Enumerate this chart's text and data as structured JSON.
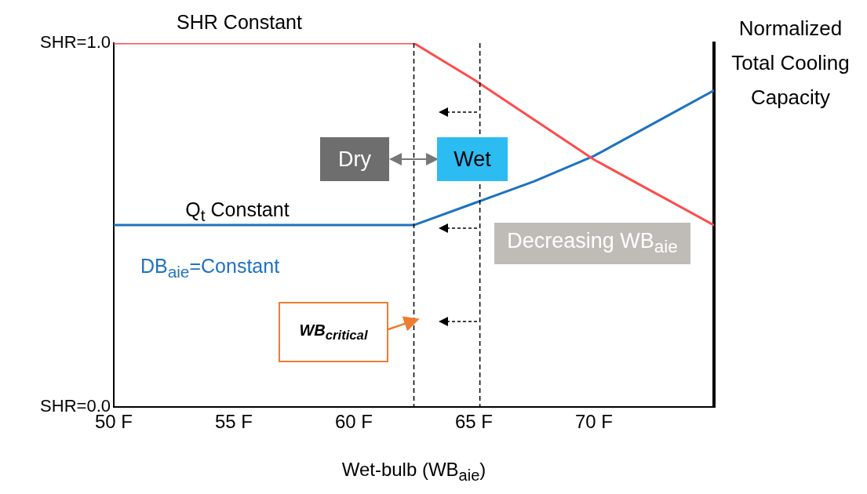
{
  "chart_data": {
    "type": "line",
    "xlabel": "Wet-bulb (WB$_{aie}$)",
    "y2label": "Normalized Total Cooling Capacity",
    "xlim": [
      50,
      75
    ],
    "xticks": [
      {
        "value": 50,
        "label": "50 F"
      },
      {
        "value": 55,
        "label": "55 F"
      },
      {
        "value": 60,
        "label": "60 F"
      },
      {
        "value": 65,
        "label": "65 F"
      },
      {
        "value": 70,
        "label": "70 F"
      }
    ],
    "ylim": [
      0,
      1
    ],
    "yticks": [
      {
        "value": 0,
        "label": "SHR=0.0"
      },
      {
        "value": 1,
        "label": "SHR=1.0"
      }
    ],
    "series": [
      {
        "color": "#ff4b4b",
        "x": [
          50,
          62.5,
          65,
          67.5,
          70,
          72.5,
          75
        ],
        "values": [
          1.0,
          1.0,
          0.9,
          0.79,
          0.68,
          0.59,
          0.5
        ]
      },
      {
        "color": "#1f72c0",
        "x": [
          50,
          62.5,
          65,
          67.5,
          70,
          72.5,
          75
        ],
        "values": [
          0.5,
          0.5,
          0.56,
          0.62,
          0.69,
          0.78,
          0.87
        ]
      }
    ],
    "ref_lines": [
      {
        "axis": "x",
        "value": 62.5,
        "color": "#000000",
        "line_style": "dashed"
      },
      {
        "axis": "x",
        "value": 65.25,
        "color": "#000000",
        "line_style": "dashed"
      }
    ],
    "annotations": [
      "SHR Constant",
      "Q$_{t}$ Constant",
      "DB$_{aie}$=Constant",
      "WB$_{critical}$",
      "Dry",
      "Wet",
      "Decreasing WB$_{aie}$"
    ],
    "grid": false,
    "legend": false,
    "marker": "none",
    "line_style": "solid"
  }
}
